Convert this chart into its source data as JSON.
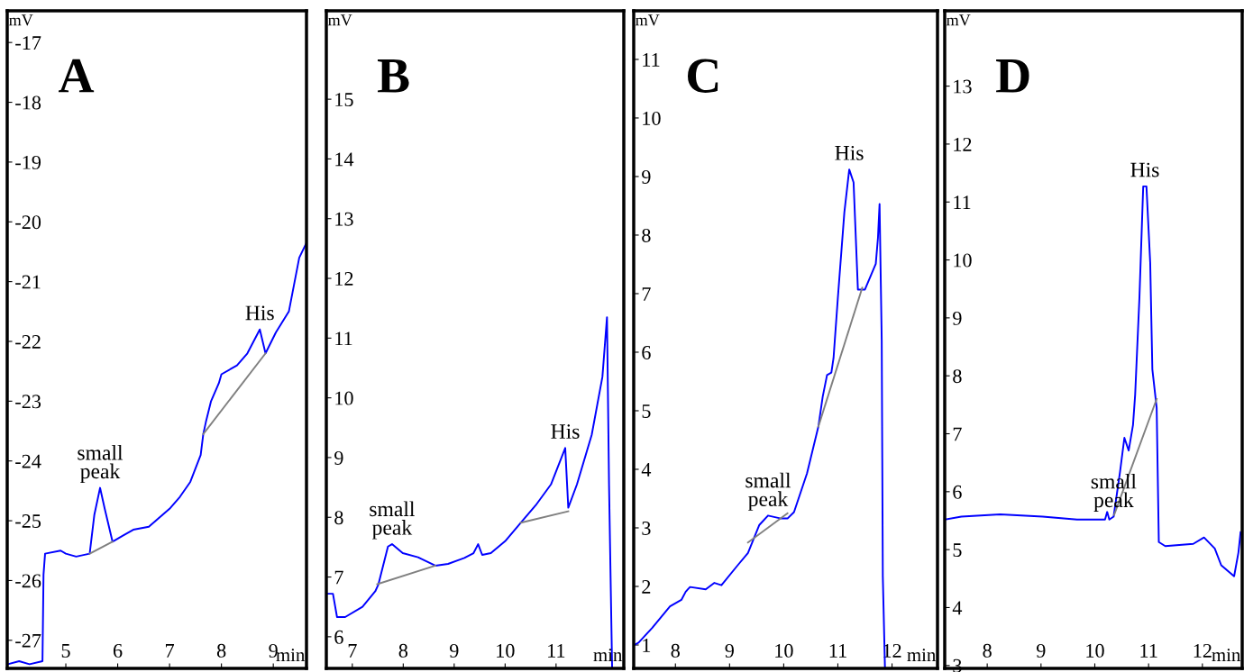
{
  "chart_data": [
    {
      "type": "line",
      "title": "A",
      "xlabel": "min",
      "ylabel": "mV",
      "xlim": [
        3.87,
        9.64
      ],
      "ylim": [
        -27.47,
        -16.47
      ],
      "xticks": [
        5,
        6,
        7,
        8,
        9
      ],
      "yticks": [
        -27,
        -26,
        -25,
        -24,
        -23,
        -22,
        -21,
        -20,
        -19,
        -18,
        -17
      ],
      "grid": false,
      "legend": false,
      "annotations": [
        {
          "text": "small\npeak",
          "x": 5.66,
          "y": -24.45
        },
        {
          "text": "His",
          "x": 8.74,
          "y": -21.8
        }
      ],
      "series": [
        {
          "color": "#0000ff",
          "x": [
            3.88,
            4.1,
            4.3,
            4.55,
            4.57,
            4.6,
            4.9,
            5.0,
            5.2,
            5.46,
            5.55,
            5.66,
            5.75,
            5.9,
            6.1,
            6.3,
            6.6,
            6.8,
            7.0,
            7.2,
            7.4,
            7.6,
            7.65,
            7.7,
            7.8,
            7.95,
            8.0,
            8.3,
            8.5,
            8.74,
            8.85,
            9.05,
            9.3,
            9.5,
            9.64
          ],
          "values": [
            -27.4,
            -27.35,
            -27.4,
            -27.35,
            -25.9,
            -25.55,
            -25.5,
            -25.55,
            -25.6,
            -25.55,
            -24.9,
            -24.45,
            -24.8,
            -25.35,
            -25.25,
            -25.15,
            -25.1,
            -24.95,
            -24.8,
            -24.6,
            -24.35,
            -23.9,
            -23.55,
            -23.35,
            -23.0,
            -22.7,
            -22.55,
            -22.4,
            -22.2,
            -21.8,
            -22.2,
            -21.85,
            -21.5,
            -20.6,
            -20.35
          ]
        },
        {
          "color": "#808080",
          "x": [
            5.46,
            5.9
          ],
          "values": [
            -25.55,
            -25.35
          ]
        },
        {
          "color": "#808080",
          "x": [
            7.65,
            8.85
          ],
          "values": [
            -23.55,
            -22.2
          ]
        }
      ]
    },
    {
      "type": "line",
      "title": "B",
      "xlabel": "min",
      "ylabel": "mV",
      "xlim": [
        6.49,
        12.33
      ],
      "ylim": [
        5.47,
        16.48
      ],
      "xticks": [
        7,
        8,
        9,
        10,
        11
      ],
      "yticks": [
        6,
        7,
        8,
        9,
        10,
        11,
        12,
        13,
        14,
        15
      ],
      "grid": false,
      "legend": false,
      "annotations": [
        {
          "text": "small\npeak",
          "x": 7.78,
          "y": 7.55
        },
        {
          "text": "His",
          "x": 11.18,
          "y": 9.16
        }
      ],
      "series": [
        {
          "color": "#0000ff",
          "x": [
            6.49,
            6.62,
            6.7,
            6.86,
            7.2,
            7.45,
            7.51,
            7.7,
            7.78,
            7.99,
            8.29,
            8.63,
            8.88,
            9.2,
            9.38,
            9.47,
            9.55,
            9.72,
            10.0,
            10.31,
            10.6,
            10.9,
            11.18,
            11.24,
            11.41,
            11.7,
            11.91,
            12.0,
            12.04,
            12.1
          ],
          "values": [
            6.72,
            6.72,
            6.33,
            6.33,
            6.5,
            6.76,
            6.87,
            7.51,
            7.55,
            7.4,
            7.33,
            7.19,
            7.22,
            7.32,
            7.4,
            7.55,
            7.37,
            7.4,
            7.6,
            7.91,
            8.2,
            8.55,
            9.16,
            8.16,
            8.55,
            9.38,
            10.35,
            11.35,
            8.55,
            5.5
          ]
        },
        {
          "color": "#808080",
          "x": [
            7.49,
            8.63
          ],
          "values": [
            6.88,
            7.19
          ]
        },
        {
          "color": "#808080",
          "x": [
            10.31,
            11.24
          ],
          "values": [
            7.91,
            8.1
          ]
        }
      ]
    },
    {
      "type": "line",
      "title": "C",
      "xlabel": "min",
      "ylabel": "mV",
      "xlim": [
        7.23,
        12.84
      ],
      "ylim": [
        0.6,
        11.83
      ],
      "xticks": [
        8,
        9,
        10,
        11,
        12
      ],
      "yticks": [
        1,
        2,
        3,
        4,
        5,
        6,
        7,
        8,
        9,
        10,
        11
      ],
      "grid": false,
      "legend": false,
      "annotations": [
        {
          "text": "small\npeak",
          "x": 9.71,
          "y": 3.21
        },
        {
          "text": "His",
          "x": 11.21,
          "y": 9.12
        }
      ],
      "series": [
        {
          "color": "#0000ff",
          "x": [
            7.24,
            7.32,
            7.57,
            7.9,
            8.11,
            8.19,
            8.27,
            8.56,
            8.72,
            8.85,
            9.14,
            9.34,
            9.55,
            9.71,
            9.95,
            10.07,
            10.19,
            10.43,
            10.64,
            10.72,
            10.8,
            10.88,
            10.92,
            11.0,
            11.12,
            11.21,
            11.29,
            11.37,
            11.5,
            11.7,
            11.74,
            11.77,
            11.81,
            11.83,
            11.87
          ],
          "values": [
            1.0,
            1.04,
            1.29,
            1.66,
            1.77,
            1.91,
            1.99,
            1.95,
            2.06,
            2.02,
            2.35,
            2.57,
            3.05,
            3.21,
            3.16,
            3.16,
            3.27,
            3.93,
            4.73,
            5.24,
            5.61,
            5.65,
            5.9,
            6.93,
            8.39,
            9.12,
            8.9,
            7.07,
            7.07,
            7.51,
            7.95,
            8.53,
            6.19,
            2.17,
            0.6
          ]
        },
        {
          "color": "#808080",
          "x": [
            9.34,
            10.07
          ],
          "values": [
            2.75,
            3.25
          ]
        },
        {
          "color": "#808080",
          "x": [
            10.64,
            11.45
          ],
          "values": [
            4.73,
            7.1
          ]
        }
      ]
    },
    {
      "type": "line",
      "title": "D",
      "xlabel": "min",
      "ylabel": "mV",
      "xlim": [
        7.21,
        12.74
      ],
      "ylim": [
        2.95,
        14.3
      ],
      "xticks": [
        8,
        9,
        10,
        11,
        12
      ],
      "yticks": [
        3,
        4,
        5,
        6,
        7,
        8,
        9,
        10,
        11,
        12,
        13
      ],
      "grid": false,
      "legend": false,
      "annotations": [
        {
          "text": "small\npeak",
          "x": 10.35,
          "y": 5.57
        },
        {
          "text": "His",
          "x": 10.93,
          "y": 11.27
        }
      ],
      "series": [
        {
          "color": "#0000ff",
          "x": [
            7.22,
            7.52,
            8.24,
            9.03,
            9.67,
            10.19,
            10.23,
            10.27,
            10.35,
            10.47,
            10.55,
            10.63,
            10.71,
            10.75,
            10.83,
            10.9,
            10.96,
            11.03,
            11.07,
            11.15,
            11.19,
            11.31,
            11.83,
            12.03,
            12.23,
            12.35,
            12.59,
            12.67,
            12.71
          ],
          "values": [
            5.52,
            5.57,
            5.61,
            5.57,
            5.52,
            5.52,
            5.65,
            5.52,
            5.57,
            6.35,
            6.93,
            6.71,
            7.15,
            7.67,
            9.36,
            11.27,
            11.27,
            9.95,
            8.11,
            7.45,
            5.13,
            5.06,
            5.1,
            5.21,
            5.02,
            4.73,
            4.54,
            4.95,
            5.3
          ]
        },
        {
          "color": "#808080",
          "x": [
            10.36,
            11.15
          ],
          "values": [
            5.6,
            7.6
          ]
        }
      ]
    }
  ]
}
